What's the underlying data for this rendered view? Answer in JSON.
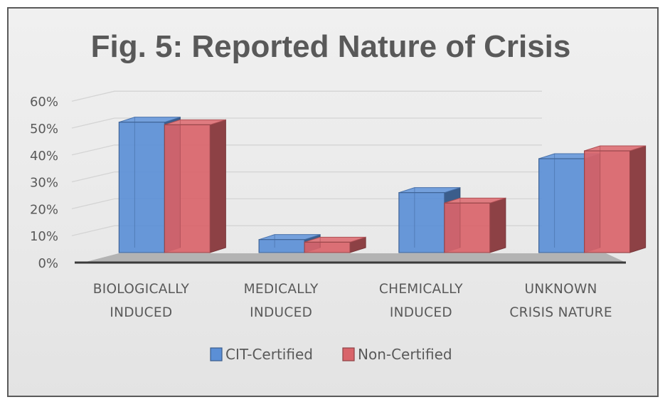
{
  "chart_data": {
    "type": "bar",
    "style": "3d-clustered",
    "title": "Fig. 5: Reported Nature of Crisis",
    "categories": [
      [
        "BIOLOGICALLY",
        "INDUCED"
      ],
      [
        "MEDICALLY",
        "INDUCED"
      ],
      [
        "CHEMICALLY",
        "INDUCED"
      ],
      [
        "UNKNOWN",
        "CRISIS NATURE"
      ]
    ],
    "series": [
      {
        "name": "CIT-Certified",
        "values": [
          50,
          5,
          23,
          36
        ],
        "color": "#5b8fd6"
      },
      {
        "name": "Non-Certified",
        "values": [
          49,
          4,
          19,
          39
        ],
        "color": "#d9646a"
      }
    ],
    "yticks": [
      "0%",
      "10%",
      "20%",
      "30%",
      "40%",
      "50%",
      "60%"
    ],
    "ylim": [
      0,
      60
    ],
    "xlabel": "",
    "ylabel": "",
    "grid": true,
    "legend_position": "bottom"
  }
}
